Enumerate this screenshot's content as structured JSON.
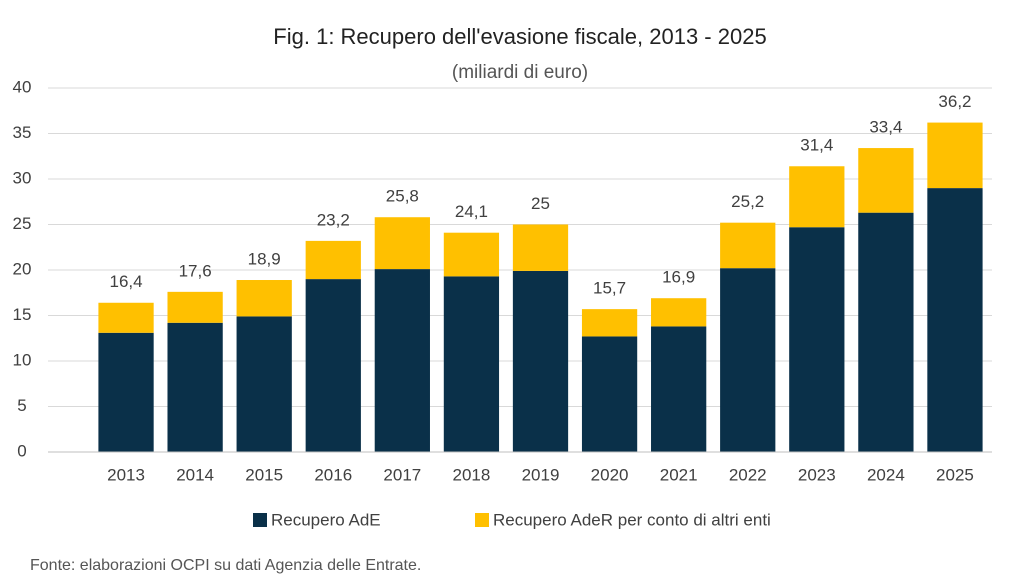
{
  "chart_data": {
    "type": "stacked_bar",
    "title": "Fig. 1: Recupero dell'evasione fiscale, 2013 - 2025",
    "subtitle": "(miliardi di euro)",
    "categories": [
      "2013",
      "2014",
      "2015",
      "2016",
      "2017",
      "2018",
      "2019",
      "2020",
      "2021",
      "2022",
      "2023",
      "2024",
      "2025"
    ],
    "series": [
      {
        "name": "Recupero AdE",
        "color": "#0a3049",
        "values": [
          13.1,
          14.2,
          14.9,
          19.0,
          20.1,
          19.3,
          19.9,
          12.7,
          13.8,
          20.2,
          24.7,
          26.3,
          29.0
        ]
      },
      {
        "name": "Recupero AdeR per conto di altri enti",
        "color": "#ffc000",
        "values": [
          3.3,
          3.4,
          4.0,
          4.2,
          5.7,
          4.8,
          5.1,
          3.0,
          3.1,
          5.0,
          6.7,
          7.1,
          7.2
        ]
      }
    ],
    "totals": [
      16.4,
      17.6,
      18.9,
      23.2,
      25.8,
      24.1,
      25,
      15.7,
      16.9,
      25.2,
      31.4,
      33.4,
      36.2
    ],
    "total_labels": [
      "16,4",
      "17,6",
      "18,9",
      "23,2",
      "25,8",
      "24,1",
      "25",
      "15,7",
      "16,9",
      "25,2",
      "31,4",
      "33,4",
      "36,2"
    ],
    "ylim": [
      0,
      40
    ],
    "yticks": [
      0,
      5,
      10,
      15,
      20,
      25,
      30,
      35,
      40
    ],
    "grid": true,
    "legend": "bottom",
    "source": "Fonte: elaborazioni OCPI su dati Agenzia delle Entrate."
  }
}
